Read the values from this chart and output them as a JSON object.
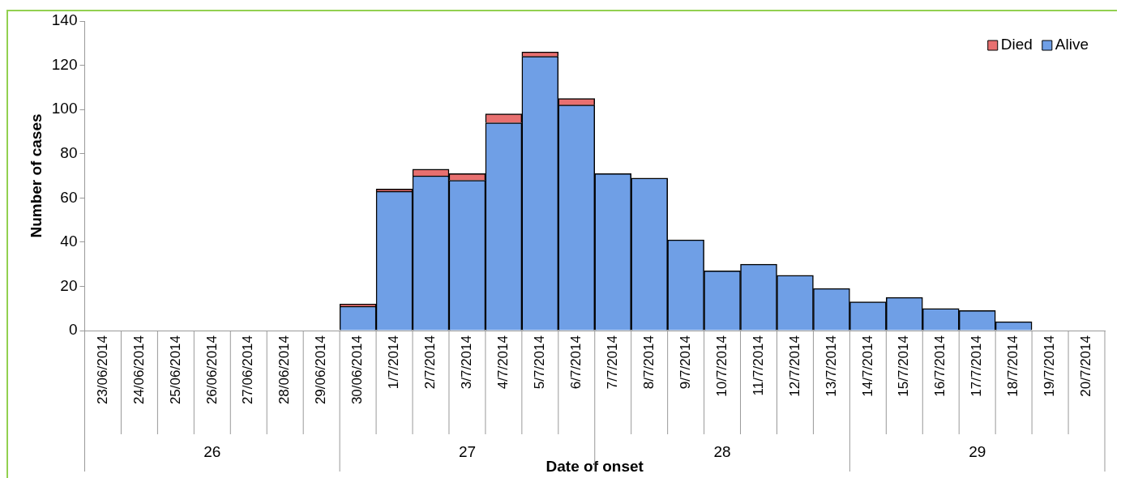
{
  "chart_data": {
    "type": "bar",
    "xlabel": "Date of onset",
    "ylabel": "Number of cases",
    "categories": [
      "23/06/2014",
      "24/06/2014",
      "25/06/2014",
      "26/06/2014",
      "27/06/2014",
      "28/06/2014",
      "29/06/2014",
      "30/06/2014",
      "1/7/2014",
      "2/7/2014",
      "3/7/2014",
      "4/7/2014",
      "5/7/2014",
      "6/7/2014",
      "7/7/2014",
      "8/7/2014",
      "9/7/2014",
      "10/7/2014",
      "11/7/2014",
      "12/7/2014",
      "13/7/2014",
      "14/7/2014",
      "15/7/2014",
      "16/7/2014",
      "17/7/2014",
      "18/7/2014",
      "19/7/2014",
      "20/7/2014"
    ],
    "series": [
      {
        "name": "Alive",
        "color": "#6f9fe6",
        "values": [
          0,
          0,
          0,
          0,
          0,
          0,
          0,
          11,
          63,
          70,
          68,
          94,
          124,
          102,
          71,
          69,
          41,
          27,
          30,
          25,
          19,
          13,
          15,
          10,
          9,
          4,
          0,
          0
        ]
      },
      {
        "name": "Died",
        "color": "#e87070",
        "values": [
          0,
          0,
          0,
          0,
          0,
          0,
          0,
          1,
          1,
          3,
          3,
          4,
          2,
          3,
          0,
          0,
          0,
          0,
          0,
          0,
          0,
          0,
          0,
          0,
          0,
          0,
          0,
          0
        ]
      }
    ],
    "stacked": true,
    "ylim": [
      0,
      140
    ],
    "yticks": [
      0,
      20,
      40,
      60,
      80,
      100,
      120,
      140
    ],
    "grid": false,
    "legend": "top right",
    "annotations": [
      "26",
      "27",
      "28",
      "29"
    ]
  }
}
